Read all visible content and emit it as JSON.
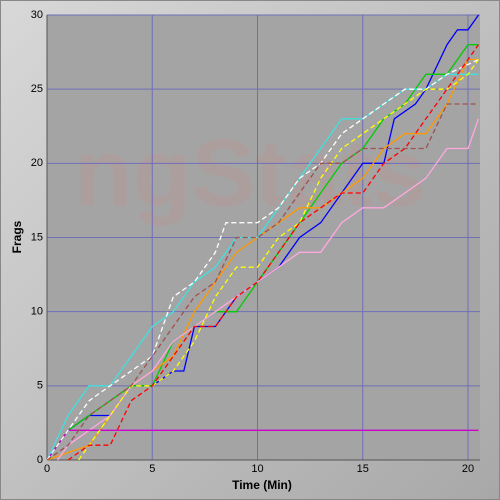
{
  "chart_data": {
    "type": "line",
    "watermark": "ngStats",
    "x_label": "Time (Min)",
    "y_label": "Frags",
    "xlim": [
      0,
      20.57
    ],
    "ylim": [
      0,
      30
    ],
    "xticks": [
      0,
      5,
      10,
      15,
      20
    ],
    "yticks": [
      0,
      5,
      10,
      15,
      20,
      25,
      30
    ],
    "grid": true,
    "series": [
      {
        "color": "#0000ff",
        "dash": false,
        "x": [
          0,
          1,
          2,
          3,
          3.5,
          4,
          5,
          6,
          6.5,
          7,
          8,
          9,
          10,
          11,
          12,
          13,
          14,
          15,
          16,
          16.5,
          17.5,
          18,
          19,
          19.5,
          20,
          20.5
        ],
        "values": [
          0,
          2,
          3,
          3,
          4,
          5,
          5,
          6,
          6,
          9,
          9,
          11,
          12,
          13,
          15,
          16,
          18,
          20,
          20,
          23,
          24,
          25,
          28,
          29,
          29,
          30
        ]
      },
      {
        "color": "#00cc00",
        "dash": false,
        "x": [
          0,
          1,
          2,
          3,
          4,
          5,
          6,
          7,
          8,
          9,
          10,
          11,
          12,
          13,
          14,
          15,
          16,
          17,
          18,
          19,
          20,
          20.5
        ],
        "values": [
          0,
          2,
          3,
          4,
          5,
          5,
          8,
          9,
          10,
          10,
          12,
          14,
          16,
          18,
          20,
          21,
          23,
          24,
          26,
          26,
          28,
          28
        ]
      },
      {
        "color": "#ff9900",
        "dash": false,
        "x": [
          0,
          2,
          3,
          4,
          5,
          6,
          7,
          8,
          9,
          10,
          11,
          12,
          13,
          14,
          15,
          16,
          17,
          18,
          19,
          20,
          20.5
        ],
        "values": [
          0,
          1,
          3,
          5,
          6,
          7,
          10,
          12,
          14,
          15,
          16,
          17,
          17,
          18,
          19,
          21,
          22,
          22,
          24,
          27,
          27
        ]
      },
      {
        "color": "#40e0e0",
        "dash": false,
        "x": [
          0,
          1,
          2,
          3,
          4,
          5,
          6,
          7,
          8,
          9,
          10,
          11,
          12,
          13,
          14,
          15,
          16,
          17,
          18,
          19,
          20.5
        ],
        "values": [
          0,
          3,
          5,
          5,
          7,
          9,
          10,
          12,
          13,
          15,
          15,
          17,
          19,
          21,
          23,
          23,
          24,
          25,
          25,
          26,
          26
        ]
      },
      {
        "color": "#ffa8e0",
        "dash": false,
        "x": [
          0.5,
          1,
          2,
          3,
          4,
          5,
          6,
          7,
          8,
          9,
          10,
          11,
          12,
          13,
          14,
          15,
          16,
          17,
          18,
          19,
          20,
          20.5
        ],
        "values": [
          0,
          1,
          2,
          3,
          5,
          6,
          8,
          9,
          10,
          11,
          12,
          13,
          14,
          14,
          16,
          17,
          17,
          18,
          19,
          21,
          21,
          23
        ]
      },
      {
        "color": "#cc00cc",
        "dash": false,
        "x": [
          0,
          1,
          20.5
        ],
        "values": [
          0,
          2,
          2
        ]
      },
      {
        "color": "#ffffff",
        "dash": true,
        "x": [
          0,
          1,
          2,
          3,
          4,
          5,
          6,
          7,
          8,
          8.5,
          10,
          11,
          12,
          13,
          14,
          15,
          16,
          17,
          18,
          19,
          20.5
        ],
        "values": [
          0,
          2,
          4,
          5,
          6,
          7,
          11,
          12,
          14,
          16,
          16,
          17,
          19,
          20,
          22,
          23,
          24,
          25,
          25,
          26,
          27
        ]
      },
      {
        "color": "#ffff00",
        "dash": true,
        "x": [
          1.5,
          2,
          3,
          4,
          5,
          6,
          7,
          8,
          9,
          10,
          11,
          12,
          13,
          14,
          15,
          16,
          17,
          18,
          19,
          20,
          20.5
        ],
        "values": [
          0,
          1,
          3,
          5,
          5,
          6,
          8,
          11,
          13,
          13,
          15,
          16,
          19,
          21,
          22,
          23,
          24,
          25,
          25,
          26,
          27
        ]
      },
      {
        "color": "#ff0000",
        "dash": true,
        "x": [
          1,
          2,
          3,
          4,
          5,
          6,
          7,
          8,
          9,
          10,
          11,
          12,
          13,
          14,
          15,
          16,
          17,
          18,
          19,
          20,
          20.5
        ],
        "values": [
          0,
          1,
          1,
          4,
          5,
          7,
          9,
          9,
          11,
          12,
          14,
          16,
          17,
          18,
          18,
          20,
          21,
          23,
          25,
          27,
          28
        ]
      },
      {
        "color": "#a05050",
        "dash": true,
        "x": [
          0,
          1,
          2,
          3,
          4,
          5,
          6,
          7,
          8,
          9,
          10,
          11,
          12,
          13,
          14,
          15,
          16,
          17,
          18,
          19,
          20.5
        ],
        "values": [
          0,
          1,
          3,
          4,
          5,
          7,
          9,
          11,
          12,
          15,
          15,
          16,
          18,
          20,
          20,
          21,
          21,
          21,
          21,
          24,
          24
        ]
      }
    ]
  }
}
